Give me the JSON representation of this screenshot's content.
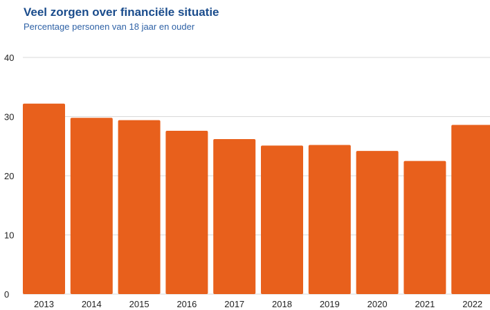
{
  "chart_data": {
    "type": "bar",
    "title": "Veel zorgen over financiële situatie",
    "subtitle": "Percentage personen van 18 jaar en ouder",
    "xlabel": "",
    "ylabel": "",
    "categories": [
      "2013",
      "2014",
      "2015",
      "2016",
      "2017",
      "2018",
      "2019",
      "2020",
      "2021",
      "2022"
    ],
    "values": [
      32.2,
      29.8,
      29.4,
      27.6,
      26.2,
      25.1,
      25.2,
      24.2,
      22.5,
      28.6
    ],
    "ylim": [
      0,
      40
    ],
    "yticks": [
      "0",
      "10",
      "20",
      "30",
      "40"
    ],
    "grid": true,
    "bar_color": "#e8601c",
    "grid_color": "#d9d9d9"
  }
}
